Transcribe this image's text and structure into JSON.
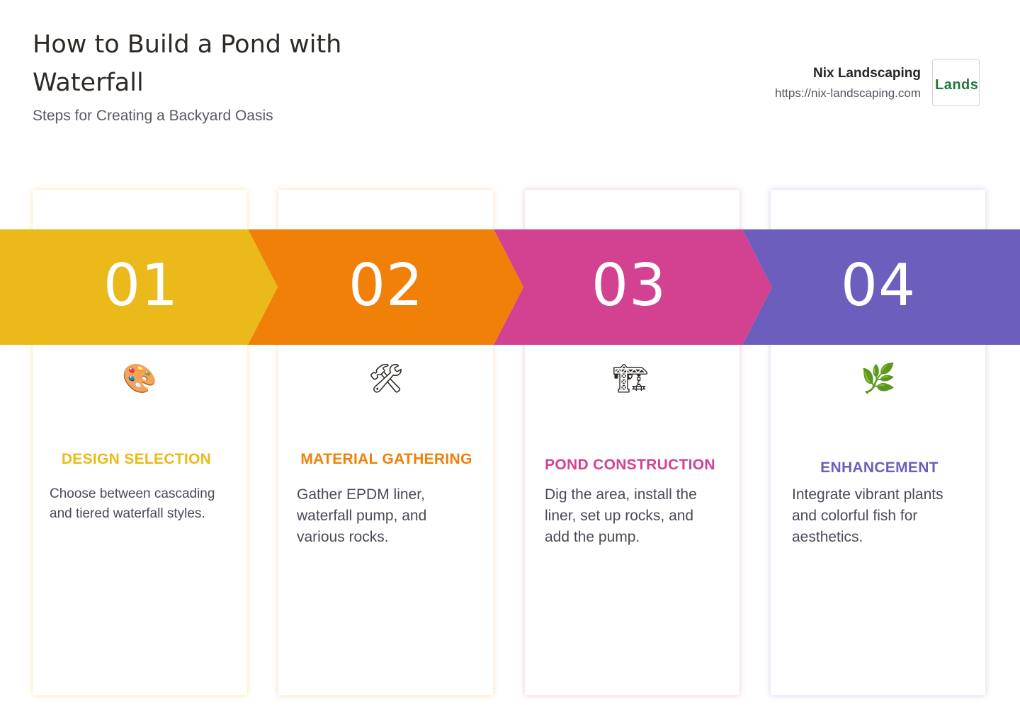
{
  "header": {
    "title": "How to Build a Pond with Waterfall",
    "subtitle": "Steps for Creating a Backyard Oasis"
  },
  "brand": {
    "name": "Nix Landscaping",
    "url": "https://nix-landscaping.com",
    "logo_text": "Landsc"
  },
  "steps": [
    {
      "number": "01",
      "icon": "artist-palette-icon",
      "title": "DESIGN SELECTION",
      "description": "Choose between cascading and tiered waterfall styles.",
      "color": "#EBB919"
    },
    {
      "number": "02",
      "icon": "hammer-and-wrench-icon",
      "title": "MATERIAL GATHERING",
      "description": "Gather EPDM liner, waterfall pump, and various rocks.",
      "color": "#F08008"
    },
    {
      "number": "03",
      "icon": "construction-crane-icon",
      "title": "POND CONSTRUCTION",
      "description": "Dig the area, install the liner, set up rocks, and add the pump.",
      "color": "#D24291"
    },
    {
      "number": "04",
      "icon": "herb-icon",
      "title": "ENHANCEMENT",
      "description": "Integrate vibrant plants and colorful fish for aesthetics.",
      "color": "#6C5EBC"
    }
  ]
}
